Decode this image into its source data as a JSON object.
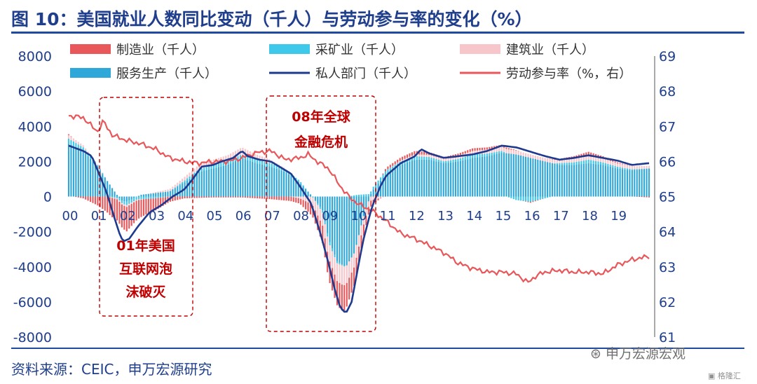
{
  "title": "图 10：美国就业人数同比变动（千人）与劳动参与率的变化（%）",
  "source": "资料来源：CEIC，申万宏源研究",
  "watermark": "申万宏源宏观",
  "watermark_logo": "格隆汇",
  "annotations": {
    "box1": [
      "01年美国",
      "互联网泡",
      "沫破灭"
    ],
    "box2": [
      "08年全球",
      "金融危机"
    ]
  },
  "colors": {
    "manufacturing": "#e8575a",
    "mining": "#3ec8ea",
    "construction": "#f6c6cb",
    "services": "#2ea8d8",
    "private": "#1d3a8f",
    "lfpr": "#e8575a",
    "annotation": "#c00000",
    "axis_text": "#1f3e8c"
  },
  "chart_data": {
    "type": "bar",
    "title": "",
    "x": [
      "00",
      "01",
      "02",
      "03",
      "04",
      "05",
      "06",
      "07",
      "08",
      "09",
      "10",
      "11",
      "12",
      "13",
      "14",
      "15",
      "16",
      "17",
      "18",
      "19"
    ],
    "left_axis": {
      "ylim": [
        -8000,
        8000
      ],
      "ticks": [
        "8000",
        "6000",
        "4000",
        "2000",
        "0",
        "-2000",
        "-4000",
        "-6000",
        "-8000"
      ]
    },
    "right_axis": {
      "ylim": [
        61,
        69
      ],
      "ticks": [
        "69",
        "68",
        "67",
        "66",
        "65",
        "64",
        "63",
        "62",
        "61"
      ]
    },
    "legend": [
      "制造业（千人）",
      "采矿业（千人）",
      "建筑业（千人）",
      "服务生产（千人）",
      "私人部门（千人）",
      "劳动参与率（%，右）"
    ],
    "legend_position": "top",
    "series": [
      {
        "name": "私人部门（千人）",
        "type": "line",
        "axis": "left",
        "points": [
          [
            0,
            2900
          ],
          [
            0.5,
            2600
          ],
          [
            0.8,
            2300
          ],
          [
            1,
            1500
          ],
          [
            1.3,
            300
          ],
          [
            1.6,
            -1300
          ],
          [
            1.8,
            -2300
          ],
          [
            1.9,
            -2550
          ],
          [
            2.1,
            -2400
          ],
          [
            2.4,
            -1700
          ],
          [
            2.8,
            -900
          ],
          [
            3.2,
            -500
          ],
          [
            3.6,
            0
          ],
          [
            4,
            400
          ],
          [
            4.3,
            1000
          ],
          [
            4.6,
            1700
          ],
          [
            5,
            1800
          ],
          [
            5.3,
            2000
          ],
          [
            5.7,
            2200
          ],
          [
            6,
            2600
          ],
          [
            6.2,
            2300
          ],
          [
            6.6,
            2100
          ],
          [
            7,
            2000
          ],
          [
            7.3,
            1700
          ],
          [
            7.7,
            1300
          ],
          [
            8,
            600
          ],
          [
            8.4,
            -400
          ],
          [
            8.7,
            -2000
          ],
          [
            9,
            -3800
          ],
          [
            9.2,
            -5200
          ],
          [
            9.4,
            -6300
          ],
          [
            9.6,
            -6650
          ],
          [
            9.8,
            -6000
          ],
          [
            10,
            -4200
          ],
          [
            10.2,
            -2500
          ],
          [
            10.5,
            -600
          ],
          [
            10.8,
            600
          ],
          [
            11,
            1200
          ],
          [
            11.5,
            1900
          ],
          [
            12,
            2300
          ],
          [
            12.2,
            2700
          ],
          [
            12.5,
            2450
          ],
          [
            13,
            2200
          ],
          [
            13.5,
            2300
          ],
          [
            14,
            2400
          ],
          [
            14.5,
            2600
          ],
          [
            15,
            2900
          ],
          [
            15.5,
            2800
          ],
          [
            16,
            2550
          ],
          [
            16.5,
            2300
          ],
          [
            17,
            2100
          ],
          [
            17.5,
            2200
          ],
          [
            18,
            2350
          ],
          [
            18.5,
            2200
          ],
          [
            19,
            2050
          ],
          [
            19.5,
            1800
          ],
          [
            20.1,
            1900
          ]
        ]
      },
      {
        "name": "劳动参与率（%，右）",
        "type": "line",
        "axis": "right",
        "points": [
          [
            0,
            67.3
          ],
          [
            0.5,
            67.25
          ],
          [
            0.8,
            67.0
          ],
          [
            1,
            66.85
          ],
          [
            1.2,
            67.15
          ],
          [
            1.5,
            66.75
          ],
          [
            2,
            66.6
          ],
          [
            2.5,
            66.5
          ],
          [
            3,
            66.35
          ],
          [
            3.5,
            66.1
          ],
          [
            4,
            66.0
          ],
          [
            4.5,
            65.95
          ],
          [
            5,
            66.0
          ],
          [
            5.5,
            66.0
          ],
          [
            6,
            66.1
          ],
          [
            6.5,
            66.25
          ],
          [
            7,
            66.3
          ],
          [
            7.5,
            66.05
          ],
          [
            8,
            66.1
          ],
          [
            8.3,
            66.2
          ],
          [
            8.6,
            66.0
          ],
          [
            9,
            65.8
          ],
          [
            9.4,
            65.3
          ],
          [
            9.7,
            65.0
          ],
          [
            10,
            64.8
          ],
          [
            10.5,
            64.6
          ],
          [
            11,
            64.3
          ],
          [
            11.5,
            63.95
          ],
          [
            12,
            63.8
          ],
          [
            12.5,
            63.6
          ],
          [
            13,
            63.4
          ],
          [
            13.5,
            63.1
          ],
          [
            14,
            62.95
          ],
          [
            14.5,
            62.85
          ],
          [
            15,
            62.85
          ],
          [
            15.5,
            62.8
          ],
          [
            15.9,
            62.55
          ],
          [
            16.2,
            62.75
          ],
          [
            16.5,
            62.85
          ],
          [
            17,
            62.9
          ],
          [
            17.5,
            62.85
          ],
          [
            18,
            62.85
          ],
          [
            18.5,
            62.8
          ],
          [
            19,
            63.05
          ],
          [
            19.5,
            63.2
          ],
          [
            20.1,
            63.3
          ]
        ]
      },
      {
        "name": "服务生产（千人）",
        "type": "bar",
        "axis": "left",
        "points": [
          [
            0,
            3000
          ],
          [
            0.5,
            2600
          ],
          [
            1,
            1700
          ],
          [
            1.5,
            500
          ],
          [
            1.8,
            -200
          ],
          [
            2,
            -300
          ],
          [
            2.5,
            100
          ],
          [
            3,
            200
          ],
          [
            3.5,
            300
          ],
          [
            4,
            800
          ],
          [
            4.5,
            1400
          ],
          [
            5,
            1600
          ],
          [
            5.5,
            1800
          ],
          [
            6,
            2200
          ],
          [
            6.5,
            1900
          ],
          [
            7,
            1700
          ],
          [
            7.5,
            1400
          ],
          [
            8,
            800
          ],
          [
            8.5,
            -100
          ],
          [
            8.8,
            -800
          ],
          [
            9,
            -2400
          ],
          [
            9.3,
            -3700
          ],
          [
            9.6,
            -4000
          ],
          [
            9.9,
            -3200
          ],
          [
            10.2,
            -1200
          ],
          [
            10.5,
            300
          ],
          [
            11,
            1300
          ],
          [
            11.5,
            1800
          ],
          [
            12,
            2100
          ],
          [
            12.5,
            2100
          ],
          [
            13,
            1900
          ],
          [
            13.5,
            2000
          ],
          [
            14,
            2200
          ],
          [
            14.5,
            2300
          ],
          [
            15,
            2500
          ],
          [
            15.5,
            2400
          ],
          [
            16,
            2200
          ],
          [
            16.5,
            2000
          ],
          [
            17,
            1800
          ],
          [
            17.5,
            1800
          ],
          [
            18,
            1900
          ],
          [
            18.5,
            1800
          ],
          [
            19,
            1600
          ],
          [
            19.5,
            1500
          ],
          [
            20.1,
            1600
          ]
        ]
      },
      {
        "name": "采矿业（千人）",
        "type": "bar",
        "axis": "left",
        "points": [
          [
            0,
            300
          ],
          [
            1,
            100
          ],
          [
            2,
            -200
          ],
          [
            3,
            -100
          ],
          [
            4,
            100
          ],
          [
            5,
            200
          ],
          [
            6,
            200
          ],
          [
            7,
            200
          ],
          [
            8,
            100
          ],
          [
            9,
            -200
          ],
          [
            10,
            100
          ],
          [
            11,
            200
          ],
          [
            12,
            200
          ],
          [
            13,
            100
          ],
          [
            14,
            200
          ],
          [
            15,
            100
          ],
          [
            15.5,
            -200
          ],
          [
            16,
            -300
          ],
          [
            17,
            100
          ],
          [
            18,
            200
          ],
          [
            19,
            100
          ],
          [
            20.1,
            0
          ]
        ]
      },
      {
        "name": "建筑业（千人）",
        "type": "bar",
        "axis": "left",
        "points": [
          [
            0,
            200
          ],
          [
            1,
            50
          ],
          [
            2,
            -100
          ],
          [
            3,
            50
          ],
          [
            4,
            200
          ],
          [
            5,
            300
          ],
          [
            6,
            400
          ],
          [
            7,
            200
          ],
          [
            8,
            -100
          ],
          [
            8.5,
            -500
          ],
          [
            9,
            -900
          ],
          [
            9.5,
            -1100
          ],
          [
            10,
            -700
          ],
          [
            10.5,
            -200
          ],
          [
            11,
            0
          ],
          [
            12,
            100
          ],
          [
            13,
            150
          ],
          [
            14,
            200
          ],
          [
            15,
            250
          ],
          [
            16,
            200
          ],
          [
            17,
            200
          ],
          [
            18,
            250
          ],
          [
            19,
            200
          ],
          [
            20.1,
            150
          ]
        ]
      },
      {
        "name": "制造业（千人）",
        "type": "bar",
        "axis": "left",
        "points": [
          [
            0,
            50
          ],
          [
            0.5,
            -100
          ],
          [
            1,
            -500
          ],
          [
            1.5,
            -1100
          ],
          [
            2,
            -1400
          ],
          [
            2.5,
            -1000
          ],
          [
            3,
            -700
          ],
          [
            3.5,
            -300
          ],
          [
            4,
            -100
          ],
          [
            5,
            -50
          ],
          [
            6,
            -50
          ],
          [
            7,
            -150
          ],
          [
            8,
            -300
          ],
          [
            8.5,
            -700
          ],
          [
            9,
            -1200
          ],
          [
            9.5,
            -1500
          ],
          [
            10,
            -900
          ],
          [
            10.5,
            -300
          ],
          [
            11,
            150
          ],
          [
            12,
            200
          ],
          [
            13,
            100
          ],
          [
            14,
            150
          ],
          [
            15,
            100
          ],
          [
            16,
            -50
          ],
          [
            17,
            50
          ],
          [
            18,
            200
          ],
          [
            19,
            50
          ],
          [
            20.1,
            -50
          ]
        ]
      }
    ]
  }
}
